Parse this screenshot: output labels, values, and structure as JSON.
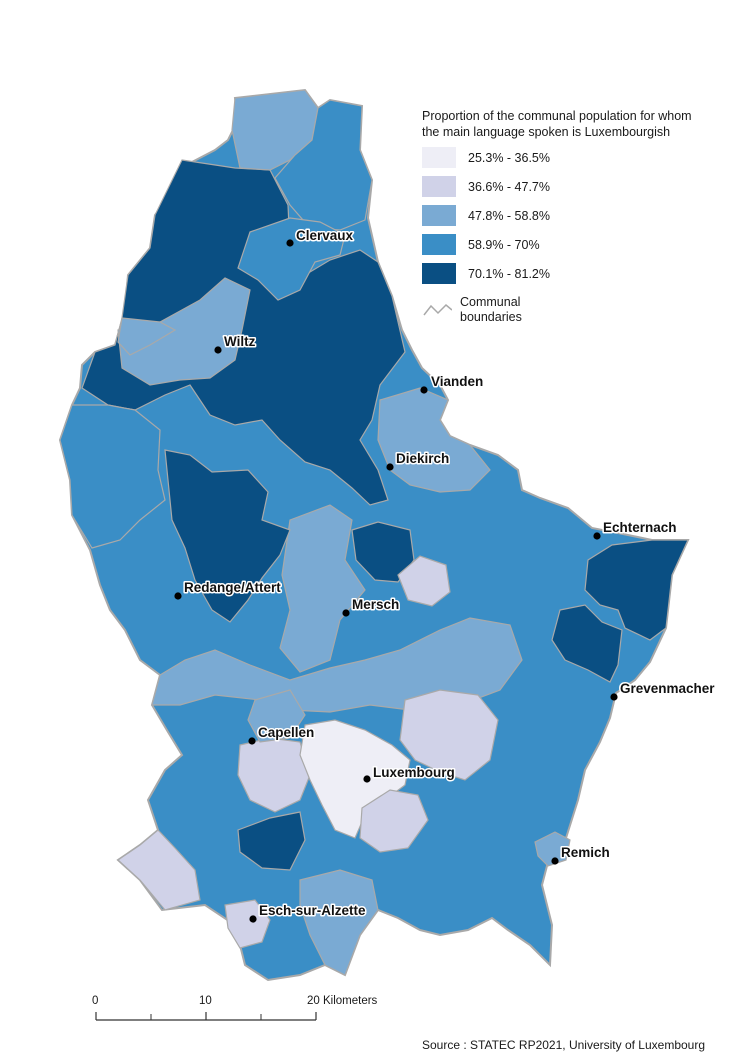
{
  "legend": {
    "title_line1": "Proportion of the communal population for whom",
    "title_line2": "the main language spoken is Luxembourgish",
    "classes": [
      {
        "label": "25.3% - 36.5%",
        "color": "#eeeef6"
      },
      {
        "label": "36.6% - 47.7%",
        "color": "#d0d2e8"
      },
      {
        "label": "47.8% - 58.8%",
        "color": "#7aaad3"
      },
      {
        "label": "58.9% - 70%",
        "color": "#3a8ec6"
      },
      {
        "label": "70.1% - 81.2%",
        "color": "#0a4f83"
      }
    ],
    "boundary_line1": "Communal",
    "boundary_line2": "boundaries",
    "boundary_color": "#a9a9a9"
  },
  "cities": [
    {
      "name": "Clervaux"
    },
    {
      "name": "Wiltz"
    },
    {
      "name": "Vianden"
    },
    {
      "name": "Diekirch"
    },
    {
      "name": "Echternach"
    },
    {
      "name": "Redange/Attert"
    },
    {
      "name": "Mersch"
    },
    {
      "name": "Grevenmacher"
    },
    {
      "name": "Capellen"
    },
    {
      "name": "Luxembourg"
    },
    {
      "name": "Remich"
    },
    {
      "name": "Esch-sur-Alzette"
    }
  ],
  "scale": {
    "tick0": "0",
    "tick10": "10",
    "tick20": "20 Kilometers"
  },
  "source": "Source : STATEC RP2021, University of Luxembourg"
}
